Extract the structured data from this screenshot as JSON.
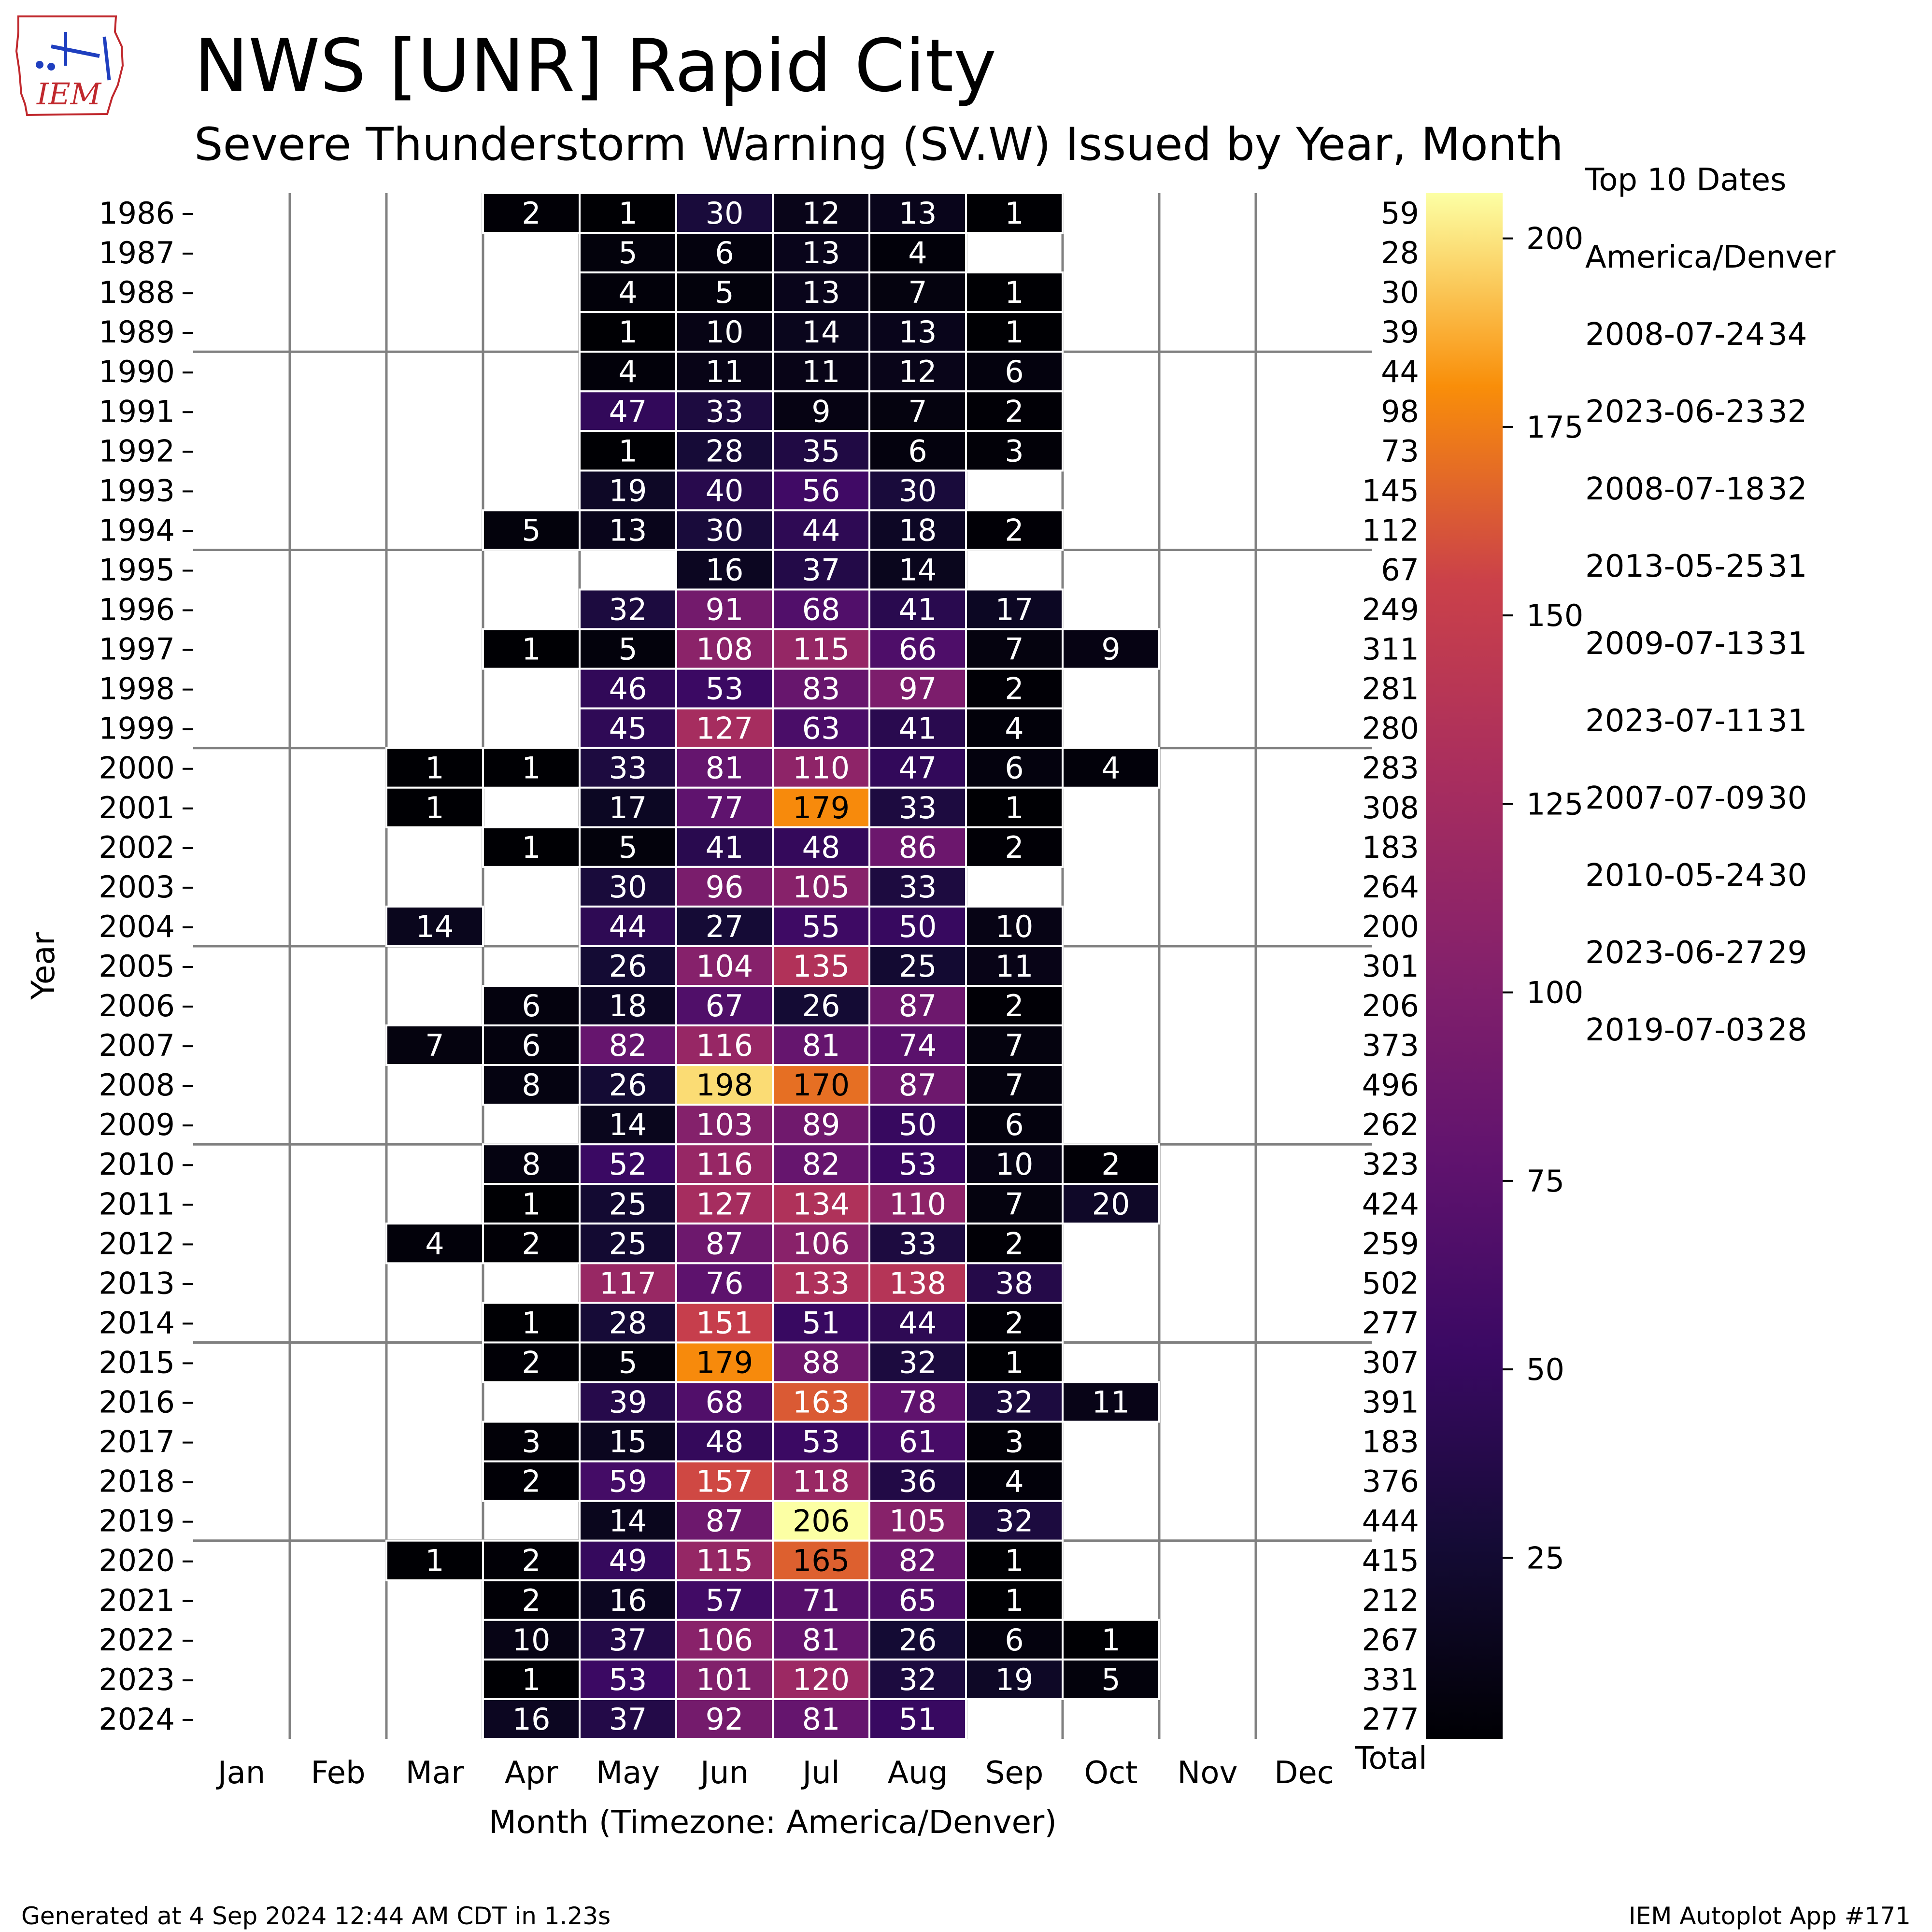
{
  "header": {
    "logo_text": "IEM",
    "title": "NWS [UNR] Rapid City",
    "subtitle": "Severe Thunderstorm Warning (SV.W) Issued by Year, Month"
  },
  "footer": {
    "left": "Generated at 4 Sep 2024 12:44 AM CDT in 1.23s",
    "right": "IEM Autoplot App #171"
  },
  "top10": {
    "title": "Top 10 Dates",
    "timezone": "America/Denver",
    "items": [
      {
        "date": "2008-07-24",
        "count": "34"
      },
      {
        "date": "2023-06-23",
        "count": "32"
      },
      {
        "date": "2008-07-18",
        "count": "32"
      },
      {
        "date": "2013-05-25",
        "count": "31"
      },
      {
        "date": "2009-07-13",
        "count": "31"
      },
      {
        "date": "2023-07-11",
        "count": "31"
      },
      {
        "date": "2007-07-09",
        "count": "30"
      },
      {
        "date": "2010-05-24",
        "count": "30"
      },
      {
        "date": "2023-06-27",
        "count": "29"
      },
      {
        "date": "2019-07-03",
        "count": "28"
      }
    ]
  },
  "colors": {
    "grid": "#808080",
    "cell_border": "#ffffff",
    "light_text": "#ffffff",
    "dark_text": "#000000"
  },
  "chart_data": {
    "type": "heatmap",
    "colormap": "inferno",
    "xlabel": "Month (Timezone: America/Denver)",
    "ylabel": "Year",
    "months": [
      "Jan",
      "Feb",
      "Mar",
      "Apr",
      "May",
      "Jun",
      "Jul",
      "Aug",
      "Sep",
      "Oct",
      "Nov",
      "Dec"
    ],
    "total_label": "Total",
    "years": [
      1986,
      1987,
      1988,
      1989,
      1990,
      1991,
      1992,
      1993,
      1994,
      1995,
      1996,
      1997,
      1998,
      1999,
      2000,
      2001,
      2002,
      2003,
      2004,
      2005,
      2006,
      2007,
      2008,
      2009,
      2010,
      2011,
      2012,
      2013,
      2014,
      2015,
      2016,
      2017,
      2018,
      2019,
      2020,
      2021,
      2022,
      2023,
      2024
    ],
    "values": [
      [
        null,
        null,
        null,
        2,
        1,
        30,
        12,
        13,
        1,
        null,
        null,
        null
      ],
      [
        null,
        null,
        null,
        null,
        5,
        6,
        13,
        4,
        null,
        null,
        null,
        null
      ],
      [
        null,
        null,
        null,
        null,
        4,
        5,
        13,
        7,
        1,
        null,
        null,
        null
      ],
      [
        null,
        null,
        null,
        null,
        1,
        10,
        14,
        13,
        1,
        null,
        null,
        null
      ],
      [
        null,
        null,
        null,
        null,
        4,
        11,
        11,
        12,
        6,
        null,
        null,
        null
      ],
      [
        null,
        null,
        null,
        null,
        47,
        33,
        9,
        7,
        2,
        null,
        null,
        null
      ],
      [
        null,
        null,
        null,
        null,
        1,
        28,
        35,
        6,
        3,
        null,
        null,
        null
      ],
      [
        null,
        null,
        null,
        null,
        19,
        40,
        56,
        30,
        null,
        null,
        null,
        null
      ],
      [
        null,
        null,
        null,
        5,
        13,
        30,
        44,
        18,
        2,
        null,
        null,
        null
      ],
      [
        null,
        null,
        null,
        null,
        null,
        16,
        37,
        14,
        null,
        null,
        null,
        null
      ],
      [
        null,
        null,
        null,
        null,
        32,
        91,
        68,
        41,
        17,
        null,
        null,
        null
      ],
      [
        null,
        null,
        null,
        1,
        5,
        108,
        115,
        66,
        7,
        9,
        null,
        null
      ],
      [
        null,
        null,
        null,
        null,
        46,
        53,
        83,
        97,
        2,
        null,
        null,
        null
      ],
      [
        null,
        null,
        null,
        null,
        45,
        127,
        63,
        41,
        4,
        null,
        null,
        null
      ],
      [
        null,
        null,
        1,
        1,
        33,
        81,
        110,
        47,
        6,
        4,
        null,
        null
      ],
      [
        null,
        null,
        1,
        null,
        17,
        77,
        179,
        33,
        1,
        null,
        null,
        null
      ],
      [
        null,
        null,
        null,
        1,
        5,
        41,
        48,
        86,
        2,
        null,
        null,
        null
      ],
      [
        null,
        null,
        null,
        null,
        30,
        96,
        105,
        33,
        null,
        null,
        null,
        null
      ],
      [
        null,
        null,
        14,
        null,
        44,
        27,
        55,
        50,
        10,
        null,
        null,
        null
      ],
      [
        null,
        null,
        null,
        null,
        26,
        104,
        135,
        25,
        11,
        null,
        null,
        null
      ],
      [
        null,
        null,
        null,
        6,
        18,
        67,
        26,
        87,
        2,
        null,
        null,
        null
      ],
      [
        null,
        null,
        7,
        6,
        82,
        116,
        81,
        74,
        7,
        null,
        null,
        null
      ],
      [
        null,
        null,
        null,
        8,
        26,
        198,
        170,
        87,
        7,
        null,
        null,
        null
      ],
      [
        null,
        null,
        null,
        null,
        14,
        103,
        89,
        50,
        6,
        null,
        null,
        null
      ],
      [
        null,
        null,
        null,
        8,
        52,
        116,
        82,
        53,
        10,
        2,
        null,
        null
      ],
      [
        null,
        null,
        null,
        1,
        25,
        127,
        134,
        110,
        7,
        20,
        null,
        null
      ],
      [
        null,
        null,
        4,
        2,
        25,
        87,
        106,
        33,
        2,
        null,
        null,
        null
      ],
      [
        null,
        null,
        null,
        null,
        117,
        76,
        133,
        138,
        38,
        null,
        null,
        null
      ],
      [
        null,
        null,
        null,
        1,
        28,
        151,
        51,
        44,
        2,
        null,
        null,
        null
      ],
      [
        null,
        null,
        null,
        2,
        5,
        179,
        88,
        32,
        1,
        null,
        null,
        null
      ],
      [
        null,
        null,
        null,
        null,
        39,
        68,
        163,
        78,
        32,
        11,
        null,
        null
      ],
      [
        null,
        null,
        null,
        3,
        15,
        48,
        53,
        61,
        3,
        null,
        null,
        null
      ],
      [
        null,
        null,
        null,
        2,
        59,
        157,
        118,
        36,
        4,
        null,
        null,
        null
      ],
      [
        null,
        null,
        null,
        null,
        14,
        87,
        206,
        105,
        32,
        null,
        null,
        null
      ],
      [
        null,
        null,
        1,
        2,
        49,
        115,
        165,
        82,
        1,
        null,
        null,
        null
      ],
      [
        null,
        null,
        null,
        2,
        16,
        57,
        71,
        65,
        1,
        null,
        null,
        null
      ],
      [
        null,
        null,
        null,
        10,
        37,
        106,
        81,
        26,
        6,
        1,
        null,
        null
      ],
      [
        null,
        null,
        null,
        1,
        53,
        101,
        120,
        32,
        19,
        5,
        null,
        null
      ],
      [
        null,
        null,
        null,
        16,
        37,
        92,
        81,
        51,
        null,
        null,
        null,
        null
      ]
    ],
    "totals": [
      59,
      28,
      30,
      39,
      44,
      98,
      73,
      145,
      112,
      67,
      249,
      311,
      281,
      280,
      283,
      308,
      183,
      264,
      200,
      301,
      206,
      373,
      496,
      262,
      323,
      424,
      259,
      502,
      277,
      307,
      391,
      183,
      376,
      444,
      415,
      212,
      267,
      331,
      277
    ],
    "colorbar": {
      "min": 1,
      "max": 206,
      "ticks": [
        25,
        50,
        75,
        100,
        125,
        150,
        175,
        200
      ]
    }
  }
}
